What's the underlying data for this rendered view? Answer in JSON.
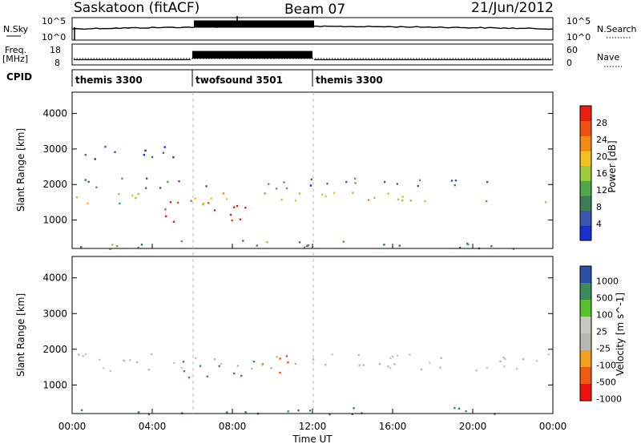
{
  "header": {
    "site": "Saskatoon (fitACF)",
    "beam": "Beam 07",
    "date": "21/Jun/2012"
  },
  "sky_panel": {
    "left_label": "N.Sky",
    "right_label": "N.Search",
    "yticks_left": [
      "10^5",
      "10^0"
    ],
    "yticks_right": [
      "10^5",
      "10^0"
    ]
  },
  "freq_panel": {
    "left_label_1": "Freq.",
    "left_label_2": "[MHz]",
    "right_label": "Nave",
    "yticks_left": [
      "18",
      "8"
    ],
    "yticks_right": [
      "60",
      "0"
    ],
    "freq_values": [
      {
        "start": 0,
        "end": 6,
        "value": 10.5
      },
      {
        "start": 6,
        "end": 12,
        "value": 13.5
      },
      {
        "start": 12,
        "end": 24,
        "value": 10.5
      }
    ]
  },
  "cpid": {
    "label": "CPID",
    "segments": [
      {
        "name": "themis 3300",
        "start": 0,
        "end": 6
      },
      {
        "name": "twofsound 3501",
        "start": 6,
        "end": 12
      },
      {
        "name": "themis 3300",
        "start": 12,
        "end": 24
      }
    ]
  },
  "colors": {
    "power_scale": [
      "#1a2fd0",
      "#3a56b0",
      "#3d7f55",
      "#4fa84a",
      "#9ccc3c",
      "#f0c020",
      "#f08a10",
      "#f05010",
      "#e81e0e"
    ],
    "velocity_scale": [
      "#f01010",
      "#f05a10",
      "#f5a020",
      "#b8b8b0",
      "#c8c8c0",
      "#59c02c",
      "#3a8c5a",
      "#2a50a8"
    ]
  },
  "chart_data": [
    {
      "type": "heatmap",
      "name": "power",
      "ylabel": "Slant Range [km]",
      "ylim": [
        200,
        4600
      ],
      "yticks": [
        1000,
        2000,
        3000,
        4000
      ],
      "xlim": [
        0,
        24
      ],
      "colorbar_label": "Power [dB]",
      "colorbar_ticks": [
        4,
        8,
        12,
        16,
        20,
        24,
        28
      ],
      "colorbar_range": [
        0,
        32
      ],
      "features": [
        {
          "range_start": 1450,
          "range_end": 1800,
          "t_start": 0,
          "t_end": 24,
          "level": 18
        },
        {
          "range_start": 800,
          "range_end": 1600,
          "t_start": 4.5,
          "t_end": 8.8,
          "level": 30
        },
        {
          "range_start": 2700,
          "range_end": 3200,
          "t_start": 0.3,
          "t_end": 5.5,
          "level": 6
        },
        {
          "range_start": 1900,
          "range_end": 2200,
          "t_start": 0,
          "t_end": 24,
          "level": 8
        },
        {
          "range_start": 200,
          "range_end": 450,
          "t_start": 0,
          "t_end": 24,
          "level": 10
        }
      ]
    },
    {
      "type": "heatmap",
      "name": "velocity",
      "ylabel": "Slant Range [km]",
      "xlabel": "Time UT",
      "ylim": [
        200,
        4600
      ],
      "yticks": [
        1000,
        2000,
        3000,
        4000
      ],
      "xlim": [
        0,
        24
      ],
      "xticks": [
        "00:00",
        "04:00",
        "08:00",
        "12:00",
        "16:00",
        "20:00",
        "00:00"
      ],
      "colorbar_label": "Velocity [m s^-1]",
      "colorbar_ticks": [
        "1000",
        "500",
        "100",
        "25",
        "-25",
        "-100",
        "-500",
        "-1000"
      ],
      "features": [
        {
          "range_start": 1200,
          "range_end": 1700,
          "t_start": 4.5,
          "t_end": 9.2,
          "velocity": 150
        },
        {
          "range_start": 1300,
          "range_end": 2000,
          "t_start": 9.0,
          "t_end": 10.8,
          "velocity": -300
        },
        {
          "range_start": 200,
          "range_end": 400,
          "t_start": 0,
          "t_end": 24,
          "velocity": 150
        },
        {
          "range_start": 1350,
          "range_end": 1900,
          "t_start": 0,
          "t_end": 24,
          "velocity": 0
        }
      ]
    }
  ]
}
